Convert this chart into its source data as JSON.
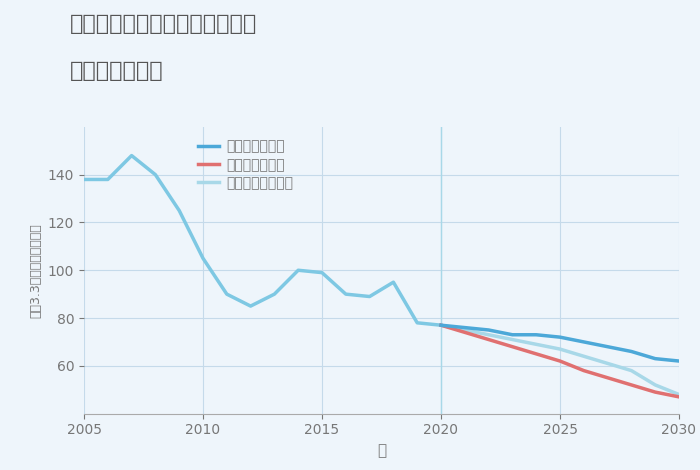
{
  "title_line1": "神奈川県中郡二宮町百合が丘の",
  "title_line2": "土地の価格推移",
  "xlabel": "年",
  "ylabel": "坪（3.3㎡）単価（万円）",
  "background_color": "#eef5fb",
  "plot_bg_color": "#eef5fb",
  "ylim": [
    40,
    160
  ],
  "xlim": [
    2005,
    2030
  ],
  "yticks": [
    60,
    80,
    100,
    120,
    140
  ],
  "xticks": [
    2005,
    2010,
    2015,
    2020,
    2025,
    2030
  ],
  "grid_color": "#c5daea",
  "historical": {
    "years": [
      2005,
      2006,
      2007,
      2008,
      2009,
      2010,
      2011,
      2012,
      2013,
      2014,
      2015,
      2016,
      2017,
      2018,
      2019,
      2020
    ],
    "values": [
      138,
      138,
      148,
      140,
      125,
      105,
      90,
      85,
      90,
      100,
      99,
      90,
      89,
      95,
      78,
      77
    ],
    "color": "#7ec8e3",
    "linewidth": 2.5
  },
  "good_scenario": {
    "years": [
      2020,
      2021,
      2022,
      2023,
      2024,
      2025,
      2026,
      2027,
      2028,
      2029,
      2030
    ],
    "values": [
      77,
      76,
      75,
      73,
      73,
      72,
      70,
      68,
      66,
      63,
      62
    ],
    "color": "#4ca8d8",
    "linewidth": 2.5,
    "label": "グッドシナリオ"
  },
  "bad_scenario": {
    "years": [
      2020,
      2021,
      2022,
      2023,
      2024,
      2025,
      2026,
      2027,
      2028,
      2029,
      2030
    ],
    "values": [
      77,
      74,
      71,
      68,
      65,
      62,
      58,
      55,
      52,
      49,
      47
    ],
    "color": "#e07070",
    "linewidth": 2.5,
    "label": "バッドシナリオ"
  },
  "normal_scenario": {
    "years": [
      2020,
      2021,
      2022,
      2023,
      2024,
      2025,
      2026,
      2027,
      2028,
      2029,
      2030
    ],
    "values": [
      77,
      75,
      73,
      71,
      69,
      67,
      64,
      61,
      58,
      52,
      48
    ],
    "color": "#a8d8e8",
    "linewidth": 2.5,
    "label": "ノーマルシナリオ"
  },
  "vline_x": 2020,
  "vline_color": "#a8d8e8",
  "title_color": "#555555",
  "title_fontsize": 16,
  "legend_fontsize": 10,
  "axis_label_color": "#777777",
  "tick_color": "#777777"
}
